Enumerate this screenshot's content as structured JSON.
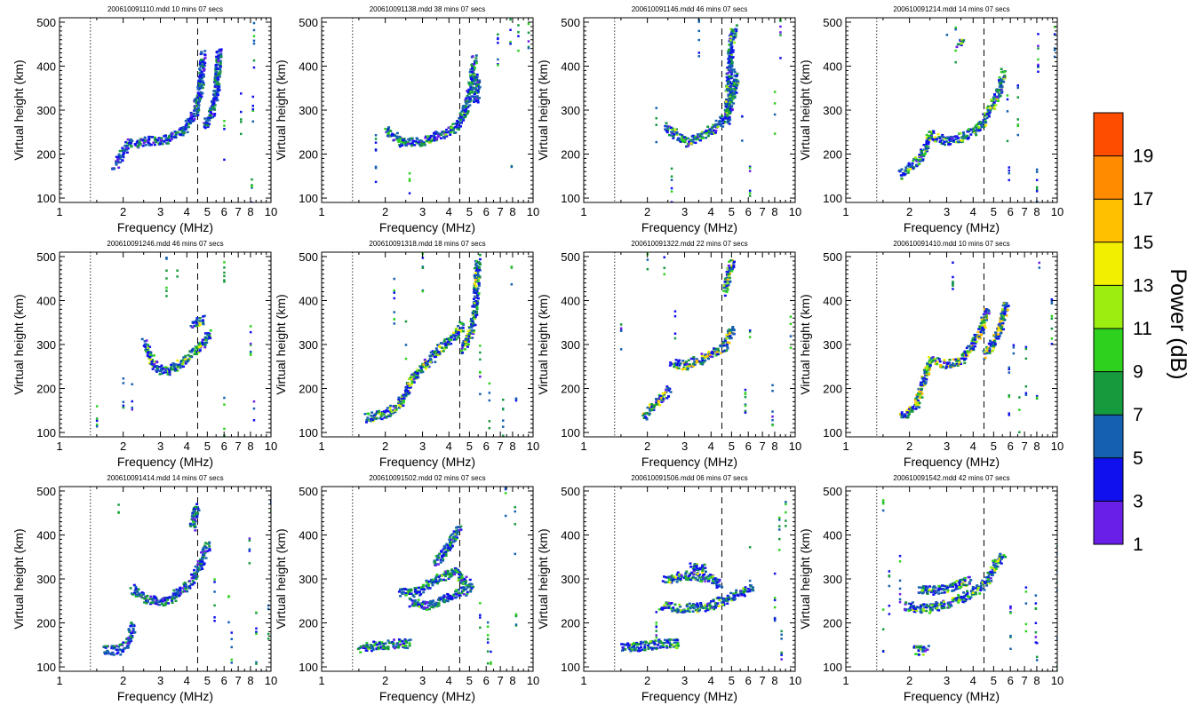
{
  "chart_data": {
    "type": "heatmap",
    "layout": "3 rows x 4 columns of ionograms",
    "xlabel": "Frequency (MHz)",
    "ylabel": "Virtual height (km)",
    "x_scale": "log",
    "xlim": [
      1,
      10
    ],
    "ylim": [
      90,
      510
    ],
    "x_ticks": [
      1,
      2,
      3,
      4,
      5,
      6,
      7,
      8,
      10
    ],
    "x_tick_labels": [
      "1",
      "2",
      "3",
      "4",
      "5",
      "6",
      "7",
      "8",
      "10"
    ],
    "y_ticks": [
      100,
      200,
      300,
      400,
      500
    ],
    "y_tick_labels": [
      "100",
      "200",
      "300",
      "400",
      "500"
    ],
    "reference_lines": [
      {
        "style": "dotted",
        "frequency_mhz": 1.4
      },
      {
        "style": "dashed",
        "frequency_mhz": 4.5
      }
    ],
    "colorbar": {
      "label": "Power (dB)",
      "range": [
        1,
        21
      ],
      "tick_labels": [
        "1",
        "3",
        "5",
        "7",
        "9",
        "11",
        "13",
        "15",
        "17",
        "19"
      ],
      "colors": [
        "#6a1fe8",
        "#1010ee",
        "#1560b0",
        "#169a3e",
        "#2ed21e",
        "#9bee10",
        "#f2f000",
        "#ffc000",
        "#ff8c00",
        "#ff4d00"
      ]
    },
    "panels": [
      {
        "title": "200610091110.mdd  10 mins 07 secs",
        "traces": [
          [
            [
              1.8,
              175
            ],
            [
              2.1,
              225
            ],
            [
              2.6,
              232
            ],
            [
              3.2,
              236
            ],
            [
              3.8,
              255
            ],
            [
              4.3,
              295
            ],
            [
              4.6,
              360
            ],
            [
              4.7,
              430
            ]
          ],
          [
            [
              4.8,
              265
            ],
            [
              5.2,
              300
            ],
            [
              5.5,
              360
            ],
            [
              5.6,
              440
            ]
          ]
        ],
        "scatter": [
          [
            6.0,
            235
          ],
          [
            7.2,
            280
          ],
          [
            8.1,
            120
          ],
          [
            8.2,
            300
          ],
          [
            8.3,
            450
          ]
        ]
      },
      {
        "title": "200610091138.mdd  38 mins 07 secs",
        "traces": [
          [
            [
              2.0,
              255
            ],
            [
              2.4,
              228
            ],
            [
              3.0,
              232
            ],
            [
              3.6,
              245
            ],
            [
              4.3,
              265
            ],
            [
              4.7,
              300
            ],
            [
              5.0,
              350
            ],
            [
              5.2,
              420
            ]
          ],
          [
            [
              5.3,
              320
            ],
            [
              5.4,
              380
            ]
          ]
        ],
        "scatter": [
          [
            1.8,
            190
          ],
          [
            2.6,
            110
          ],
          [
            6.8,
            420
          ],
          [
            7.8,
            460
          ],
          [
            7.9,
            140
          ],
          [
            8.5,
            480
          ],
          [
            9.5,
            500
          ]
        ]
      },
      {
        "title": "200610091146.mdd  46 mins 07 secs",
        "traces": [
          [
            [
              2.4,
              265
            ],
            [
              3.0,
              228
            ],
            [
              3.6,
              245
            ],
            [
              4.2,
              265
            ],
            [
              4.7,
              290
            ],
            [
              5.0,
              330
            ],
            [
              5.2,
              390
            ]
          ],
          [
            [
              4.7,
              280
            ],
            [
              4.9,
              450
            ],
            [
              5.1,
              490
            ]
          ]
        ],
        "scatter": [
          [
            2.2,
            290
          ],
          [
            2.6,
            130
          ],
          [
            3.5,
            470
          ],
          [
            5.6,
            250
          ],
          [
            6.1,
            120
          ],
          [
            8.0,
            300
          ],
          [
            8.5,
            480
          ]
        ]
      },
      {
        "title": "200610091214.mdd  14 mins 07 secs",
        "traces": [
          [
            [
              1.8,
              155
            ],
            [
              2.2,
              190
            ],
            [
              2.5,
              245
            ],
            [
              3.0,
              230
            ],
            [
              3.7,
              245
            ],
            [
              4.3,
              265
            ],
            [
              4.7,
              300
            ],
            [
              5.2,
              340
            ],
            [
              5.5,
              390
            ]
          ],
          [
            [
              3.4,
              450
            ],
            [
              3.6,
              460
            ]
          ]
        ],
        "scatter": [
          [
            3.0,
            500
          ],
          [
            3.3,
            460
          ],
          [
            5.8,
            280
          ],
          [
            5.9,
            160
          ],
          [
            6.5,
            300
          ],
          [
            8.0,
            130
          ],
          [
            8.1,
            420
          ],
          [
            9.7,
            480
          ]
        ]
      },
      {
        "title": "200610091246.mdd  46 mins 07 secs",
        "traces": [
          [
            [
              2.5,
              305
            ],
            [
              2.8,
              250
            ],
            [
              3.2,
              240
            ],
            [
              3.8,
              265
            ],
            [
              4.3,
              285
            ],
            [
              4.8,
              310
            ],
            [
              5.1,
              330
            ]
          ],
          [
            [
              4.2,
              350
            ],
            [
              4.8,
              360
            ]
          ]
        ],
        "scatter": [
          [
            2.0,
            180
          ],
          [
            2.2,
            160
          ],
          [
            1.5,
            150
          ],
          [
            3.2,
            470
          ],
          [
            3.6,
            500
          ],
          [
            6.0,
            140
          ],
          [
            6.0,
            480
          ],
          [
            8.0,
            320
          ],
          [
            8.3,
            140
          ]
        ]
      },
      {
        "title": "200610091318.mdd  18 mins 07 secs",
        "traces": [
          [
            [
              1.6,
              135
            ],
            [
              2.0,
              145
            ],
            [
              2.3,
              165
            ],
            [
              2.7,
              230
            ],
            [
              3.2,
              265
            ],
            [
              3.7,
              300
            ],
            [
              4.2,
              320
            ],
            [
              4.6,
              350
            ]
          ],
          [
            [
              4.6,
              290
            ],
            [
              5.0,
              330
            ],
            [
              5.3,
              400
            ],
            [
              5.4,
              500
            ]
          ]
        ],
        "scatter": [
          [
            2.2,
            400
          ],
          [
            2.5,
            330
          ],
          [
            3.0,
            470
          ],
          [
            5.6,
            240
          ],
          [
            6.2,
            160
          ],
          [
            7.2,
            120
          ],
          [
            7.9,
            490
          ],
          [
            8.3,
            180
          ]
        ]
      },
      {
        "title": "200610091322.mdd  22 mins 07 secs",
        "traces": [
          [
            [
              1.9,
              140
            ],
            [
              2.2,
              170
            ],
            [
              2.5,
              200
            ]
          ],
          [
            [
              2.6,
              260
            ],
            [
              3.0,
              255
            ],
            [
              3.6,
              270
            ],
            [
              4.1,
              285
            ],
            [
              4.6,
              300
            ],
            [
              5.0,
              340
            ]
          ],
          [
            [
              4.6,
              420
            ],
            [
              4.8,
              470
            ],
            [
              5.0,
              490
            ]
          ]
        ],
        "scatter": [
          [
            1.5,
            320
          ],
          [
            2.0,
            470
          ],
          [
            2.4,
            500
          ],
          [
            2.7,
            330
          ],
          [
            5.8,
            140
          ],
          [
            6.1,
            280
          ],
          [
            7.8,
            160
          ],
          [
            9.5,
            330
          ]
        ]
      },
      {
        "title": "200610091410.mdd  10 mins 07 secs",
        "traces": [
          [
            [
              1.8,
              135
            ],
            [
              2.1,
              160
            ],
            [
              2.3,
              220
            ],
            [
              2.5,
              265
            ],
            [
              3.0,
              255
            ],
            [
              3.5,
              270
            ],
            [
              3.9,
              300
            ],
            [
              4.3,
              335
            ],
            [
              4.6,
              380
            ]
          ],
          [
            [
              4.5,
              280
            ],
            [
              5.0,
              310
            ],
            [
              5.4,
              350
            ],
            [
              5.7,
              400
            ]
          ]
        ],
        "scatter": [
          [
            3.2,
            470
          ],
          [
            5.9,
            200
          ],
          [
            6.2,
            300
          ],
          [
            6.6,
            150
          ],
          [
            7.1,
            240
          ],
          [
            8.0,
            180
          ],
          [
            8.2,
            470
          ],
          [
            9.4,
            350
          ]
        ]
      },
      {
        "title": "200610091414.mdd  14 mins 07 secs",
        "traces": [
          [
            [
              1.6,
              140
            ],
            [
              1.9,
              140
            ],
            [
              2.1,
              160
            ],
            [
              2.2,
              200
            ]
          ],
          [
            [
              2.2,
              280
            ],
            [
              2.6,
              255
            ],
            [
              3.2,
              250
            ],
            [
              3.7,
              275
            ],
            [
              4.2,
              300
            ],
            [
              4.6,
              340
            ],
            [
              5.0,
              380
            ]
          ],
          [
            [
              4.2,
              420
            ],
            [
              4.4,
              470
            ]
          ]
        ],
        "scatter": [
          [
            1.9,
            500
          ],
          [
            5.4,
            250
          ],
          [
            6.3,
            220
          ],
          [
            6.5,
            130
          ],
          [
            7.9,
            340
          ],
          [
            8.5,
            170
          ],
          [
            9.7,
            190
          ],
          [
            10.0,
            500
          ]
        ]
      },
      {
        "title": "200610091502.mdd  02 mins 07 secs",
        "traces": [
          [
            [
              1.5,
              145
            ],
            [
              1.8,
              150
            ],
            [
              2.2,
              155
            ],
            [
              2.6,
              155
            ]
          ],
          [
            [
              2.3,
              270
            ],
            [
              2.7,
              270
            ],
            [
              3.2,
              290
            ],
            [
              3.8,
              310
            ],
            [
              4.2,
              320
            ],
            [
              4.6,
              300
            ],
            [
              5.1,
              290
            ]
          ],
          [
            [
              3.4,
              340
            ],
            [
              3.9,
              370
            ],
            [
              4.4,
              420
            ]
          ],
          [
            [
              2.6,
              250
            ],
            [
              3.1,
              240
            ],
            [
              3.7,
              255
            ],
            [
              4.3,
              270
            ],
            [
              5.0,
              280
            ]
          ]
        ],
        "scatter": [
          [
            5.6,
            200
          ],
          [
            6.1,
            150
          ],
          [
            6.3,
            120
          ],
          [
            7.4,
            480
          ],
          [
            8.2,
            410
          ],
          [
            8.3,
            250
          ]
        ]
      },
      {
        "title": "200610091506.mdd  06 mins 07 secs",
        "traces": [
          [
            [
              1.5,
              145
            ],
            [
              1.9,
              150
            ],
            [
              2.3,
              155
            ],
            [
              2.8,
              155
            ]
          ],
          [
            [
              2.3,
              240
            ],
            [
              3.0,
              235
            ],
            [
              3.8,
              240
            ],
            [
              4.6,
              255
            ],
            [
              5.5,
              270
            ],
            [
              6.2,
              280
            ]
          ],
          [
            [
              2.4,
              300
            ],
            [
              3.0,
              310
            ],
            [
              3.8,
              305
            ],
            [
              4.4,
              290
            ]
          ],
          [
            [
              3.2,
              330
            ],
            [
              3.7,
              325
            ]
          ]
        ],
        "scatter": [
          [
            2.2,
            170
          ],
          [
            6.1,
            320
          ],
          [
            8.0,
            260
          ],
          [
            8.4,
            420
          ],
          [
            8.6,
            130
          ],
          [
            9.0,
            480
          ]
        ]
      },
      {
        "title": "200610091542.mdd  42 mins 07 secs",
        "traces": [
          [
            [
              1.9,
              240
            ],
            [
              2.4,
              235
            ],
            [
              3.0,
              245
            ],
            [
              3.6,
              260
            ],
            [
              4.2,
              280
            ],
            [
              4.7,
              305
            ],
            [
              5.1,
              340
            ],
            [
              5.5,
              360
            ]
          ],
          [
            [
              2.2,
              280
            ],
            [
              2.6,
              275
            ],
            [
              3.2,
              285
            ],
            [
              3.8,
              300
            ]
          ],
          [
            [
              2.1,
              140
            ],
            [
              2.4,
              140
            ]
          ]
        ],
        "scatter": [
          [
            1.5,
            180
          ],
          [
            1.6,
            280
          ],
          [
            1.8,
            300
          ],
          [
            1.5,
            470
          ],
          [
            6.0,
            200
          ],
          [
            7.1,
            240
          ],
          [
            7.9,
            210
          ],
          [
            8.0,
            110
          ],
          [
            10.0,
            150
          ],
          [
            10.0,
            330
          ]
        ]
      }
    ]
  }
}
